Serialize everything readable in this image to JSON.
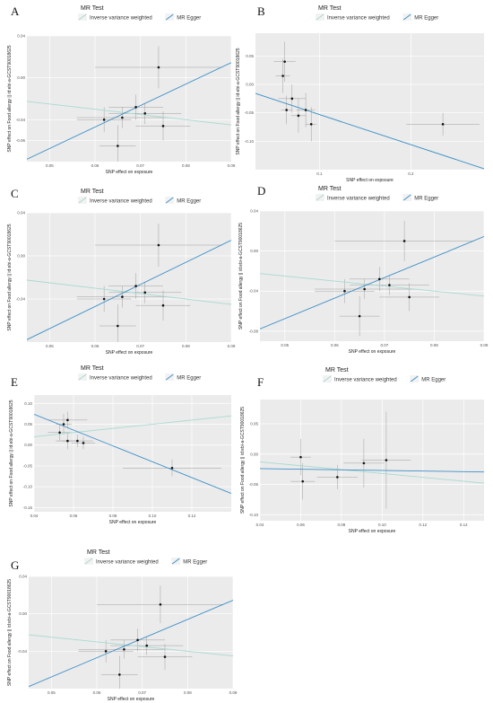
{
  "legend": {
    "title": "MR Test",
    "entries": [
      {
        "name": "Inverse variance weighted",
        "color": "#a8d9d2"
      },
      {
        "name": "MR Egger",
        "color": "#3d8fc7"
      }
    ]
  },
  "colors": {
    "panel_bg": "#ebebeb",
    "grid": "#ffffff",
    "point": "#111111",
    "errorbar": "#8c8c8c"
  },
  "chart_data": [
    {
      "label": "A",
      "type": "scatter",
      "xlabel": "SNP effect on exposure",
      "ylabel": "SNP effect on Food allergy || id:ebi-a-GCST90018625",
      "xlim": [
        0.045,
        0.09
      ],
      "ylim": [
        -0.08,
        0.04
      ],
      "xticks": [
        "0.05",
        "0.06",
        "0.07",
        "0.08",
        "0.09"
      ],
      "yticks": [
        "-0.06",
        "-0.04",
        "0.00",
        "0.04"
      ],
      "points": [
        {
          "x": 0.062,
          "y": -0.04,
          "xerr": 0.006,
          "yerr": 0.012
        },
        {
          "x": 0.065,
          "y": -0.065,
          "xerr": 0.004,
          "yerr": 0.02
        },
        {
          "x": 0.066,
          "y": -0.038,
          "xerr": 0.01,
          "yerr": 0.01
        },
        {
          "x": 0.069,
          "y": -0.028,
          "xerr": 0.006,
          "yerr": 0.012
        },
        {
          "x": 0.071,
          "y": -0.034,
          "xerr": 0.008,
          "yerr": 0.01
        },
        {
          "x": 0.074,
          "y": 0.01,
          "xerr": 0.014,
          "yerr": 0.02
        },
        {
          "x": 0.075,
          "y": -0.046,
          "xerr": 0.006,
          "yerr": 0.014
        }
      ],
      "lines": [
        {
          "name": "Inverse variance weighted",
          "intercept": 0,
          "slope": -0.5
        },
        {
          "name": "MR Egger",
          "intercept": -0.17,
          "slope": 2.05
        }
      ]
    },
    {
      "label": "B",
      "type": "scatter",
      "xlabel": "SNP effect on exposure",
      "ylabel": "SNP effect on Food allergy || id:ebi-a-GCST90018625",
      "xlim": [
        0.03,
        0.28
      ],
      "ylim": [
        -0.15,
        0.09
      ],
      "xticks": [
        "0.1",
        "0.2"
      ],
      "yticks": [
        "-0.10",
        "-0.05",
        "0.00",
        "0.05"
      ],
      "points": [
        {
          "x": 0.06,
          "y": 0.015,
          "xerr": 0.008,
          "yerr": 0.03
        },
        {
          "x": 0.062,
          "y": 0.04,
          "xerr": 0.012,
          "yerr": 0.035
        },
        {
          "x": 0.064,
          "y": -0.045,
          "xerr": 0.006,
          "yerr": 0.025
        },
        {
          "x": 0.07,
          "y": -0.025,
          "xerr": 0.015,
          "yerr": 0.025
        },
        {
          "x": 0.077,
          "y": -0.055,
          "xerr": 0.008,
          "yerr": 0.03
        },
        {
          "x": 0.085,
          "y": -0.045,
          "xerr": 0.01,
          "yerr": 0.03
        },
        {
          "x": 0.091,
          "y": -0.07,
          "xerr": 0.006,
          "yerr": 0.03
        },
        {
          "x": 0.235,
          "y": -0.07,
          "xerr": 0.04,
          "yerr": 0.02
        }
      ],
      "lines": [
        {
          "name": "Inverse variance weighted",
          "intercept": 0,
          "slope": -0.53
        },
        {
          "name": "MR Egger",
          "intercept": 0.0,
          "slope": -0.53
        }
      ]
    },
    {
      "label": "C",
      "type": "scatter",
      "xlabel": "SNP effect on exposure",
      "ylabel": "SNP effect on Food allergy || id:ebi-a-GCST90018625",
      "xlim": [
        0.045,
        0.09
      ],
      "ylim": [
        -0.08,
        0.04
      ],
      "xticks": [
        "0.05",
        "0.06",
        "0.07",
        "0.08",
        "0.09"
      ],
      "yticks": [
        "-0.04",
        "0.00",
        "0.04"
      ],
      "points": [
        {
          "x": 0.062,
          "y": -0.04,
          "xerr": 0.006,
          "yerr": 0.012
        },
        {
          "x": 0.065,
          "y": -0.065,
          "xerr": 0.004,
          "yerr": 0.02
        },
        {
          "x": 0.066,
          "y": -0.038,
          "xerr": 0.01,
          "yerr": 0.01
        },
        {
          "x": 0.069,
          "y": -0.028,
          "xerr": 0.006,
          "yerr": 0.012
        },
        {
          "x": 0.071,
          "y": -0.034,
          "xerr": 0.008,
          "yerr": 0.01
        },
        {
          "x": 0.074,
          "y": 0.01,
          "xerr": 0.014,
          "yerr": 0.02
        },
        {
          "x": 0.075,
          "y": -0.046,
          "xerr": 0.006,
          "yerr": 0.014
        }
      ],
      "lines": [
        {
          "name": "Inverse variance weighted",
          "intercept": 0,
          "slope": -0.5
        },
        {
          "name": "MR Egger",
          "intercept": -0.17,
          "slope": 2.05
        }
      ]
    },
    {
      "label": "D",
      "type": "scatter",
      "xlabel": "SNP effect on exposure",
      "ylabel": "SNP effect on Food allergy || id:ebi-a-GCST90018625",
      "xlim": [
        0.045,
        0.09
      ],
      "ylim": [
        -0.09,
        0.04
      ],
      "xticks": [
        "0.05",
        "0.06",
        "0.07",
        "0.08",
        "0.09"
      ],
      "yticks": [
        "-0.08",
        "-0.04",
        "0.00",
        "0.04"
      ],
      "points": [
        {
          "x": 0.062,
          "y": -0.04,
          "xerr": 0.006,
          "yerr": 0.012
        },
        {
          "x": 0.065,
          "y": -0.065,
          "xerr": 0.004,
          "yerr": 0.02
        },
        {
          "x": 0.066,
          "y": -0.038,
          "xerr": 0.01,
          "yerr": 0.01
        },
        {
          "x": 0.069,
          "y": -0.028,
          "xerr": 0.006,
          "yerr": 0.012
        },
        {
          "x": 0.071,
          "y": -0.034,
          "xerr": 0.008,
          "yerr": 0.01
        },
        {
          "x": 0.074,
          "y": 0.01,
          "xerr": 0.014,
          "yerr": 0.02
        },
        {
          "x": 0.075,
          "y": -0.046,
          "xerr": 0.006,
          "yerr": 0.014
        }
      ],
      "lines": [
        {
          "name": "Inverse variance weighted",
          "intercept": 0,
          "slope": -0.5
        },
        {
          "name": "MR Egger",
          "intercept": -0.17,
          "slope": 2.05
        }
      ]
    },
    {
      "label": "E",
      "type": "scatter",
      "xlabel": "SNP effect on exposure",
      "ylabel": "SNP effect on Food allergy || id:ebi-a-GCST90018625",
      "xlim": [
        0.04,
        0.14
      ],
      "ylim": [
        -0.16,
        0.12
      ],
      "xticks": [
        "0.04",
        "0.06",
        "0.08",
        "0.10",
        "0.12"
      ],
      "yticks": [
        "-0.15",
        "-0.10",
        "-0.05",
        "0.00",
        "0.05",
        "0.10"
      ],
      "points": [
        {
          "x": 0.053,
          "y": 0.03,
          "xerr": 0.006,
          "yerr": 0.02
        },
        {
          "x": 0.055,
          "y": 0.05,
          "xerr": 0.004,
          "yerr": 0.025
        },
        {
          "x": 0.057,
          "y": 0.06,
          "xerr": 0.01,
          "yerr": 0.02
        },
        {
          "x": 0.057,
          "y": 0.01,
          "xerr": 0.006,
          "yerr": 0.02
        },
        {
          "x": 0.062,
          "y": 0.01,
          "xerr": 0.008,
          "yerr": 0.015
        },
        {
          "x": 0.065,
          "y": 0.005,
          "xerr": 0.006,
          "yerr": 0.015
        },
        {
          "x": 0.11,
          "y": -0.055,
          "xerr": 0.025,
          "yerr": 0.02
        }
      ],
      "lines": [
        {
          "name": "Inverse variance weighted",
          "intercept": 0,
          "slope": 0.5
        },
        {
          "name": "MR Egger",
          "intercept": 0.15,
          "slope": -1.9
        }
      ]
    },
    {
      "label": "F",
      "type": "scatter",
      "xlabel": "SNP effect on exposure",
      "ylabel": "SNP effect on Food allergy || id:ebi-a-GCST90018625",
      "xlim": [
        0.04,
        0.15
      ],
      "ylim": [
        -0.11,
        0.09
      ],
      "xticks": [
        "0.04",
        "0.06",
        "0.08",
        "0.10",
        "0.12",
        "0.14"
      ],
      "yticks": [
        "-0.10",
        "-0.05",
        "0.00",
        "0.05"
      ],
      "points": [
        {
          "x": 0.06,
          "y": -0.005,
          "xerr": 0.005,
          "yerr": 0.03
        },
        {
          "x": 0.061,
          "y": -0.045,
          "xerr": 0.006,
          "yerr": 0.03
        },
        {
          "x": 0.078,
          "y": -0.038,
          "xerr": 0.01,
          "yerr": 0.02
        },
        {
          "x": 0.091,
          "y": -0.015,
          "xerr": 0.01,
          "yerr": 0.04
        },
        {
          "x": 0.102,
          "y": -0.01,
          "xerr": 0.012,
          "yerr": 0.08
        }
      ],
      "lines": [
        {
          "name": "Inverse variance weighted",
          "intercept": 0.0,
          "slope": -0.32
        },
        {
          "name": "MR Egger",
          "intercept": -0.022,
          "slope": -0.05
        }
      ]
    },
    {
      "label": "G",
      "type": "scatter",
      "xlabel": "SNP effect on exposure",
      "ylabel": "SNP effect on Food allergy || id:ebi-a-GCST90018625",
      "xlim": [
        0.045,
        0.09
      ],
      "ylim": [
        -0.08,
        0.04
      ],
      "xticks": [
        "0.05",
        "0.06",
        "0.07",
        "0.08",
        "0.09"
      ],
      "yticks": [
        "-0.04",
        "0.00",
        "0.04"
      ],
      "points": [
        {
          "x": 0.062,
          "y": -0.04,
          "xerr": 0.006,
          "yerr": 0.012
        },
        {
          "x": 0.065,
          "y": -0.065,
          "xerr": 0.004,
          "yerr": 0.02
        },
        {
          "x": 0.066,
          "y": -0.038,
          "xerr": 0.01,
          "yerr": 0.01
        },
        {
          "x": 0.069,
          "y": -0.028,
          "xerr": 0.006,
          "yerr": 0.012
        },
        {
          "x": 0.071,
          "y": -0.034,
          "xerr": 0.008,
          "yerr": 0.01
        },
        {
          "x": 0.074,
          "y": 0.01,
          "xerr": 0.014,
          "yerr": 0.02
        },
        {
          "x": 0.075,
          "y": -0.046,
          "xerr": 0.006,
          "yerr": 0.014
        }
      ],
      "lines": [
        {
          "name": "Inverse variance weighted",
          "intercept": 0,
          "slope": -0.5
        },
        {
          "name": "MR Egger",
          "intercept": -0.17,
          "slope": 2.05
        }
      ]
    }
  ]
}
